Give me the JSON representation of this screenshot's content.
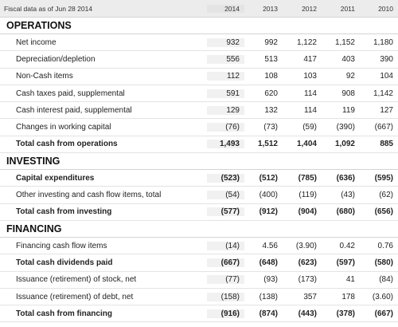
{
  "header": {
    "label": "Fiscal data as of Jun 28 2014",
    "years": [
      "2014",
      "2013",
      "2012",
      "2011",
      "2010"
    ]
  },
  "sections": [
    {
      "title": "OPERATIONS",
      "rows": [
        {
          "label": "Net income",
          "values": [
            "932",
            "992",
            "1,122",
            "1,152",
            "1,180"
          ],
          "total": false
        },
        {
          "label": "Depreciation/depletion",
          "values": [
            "556",
            "513",
            "417",
            "403",
            "390"
          ],
          "total": false
        },
        {
          "label": "Non-Cash items",
          "values": [
            "112",
            "108",
            "103",
            "92",
            "104"
          ],
          "total": false
        },
        {
          "label": "Cash taxes paid, supplemental",
          "values": [
            "591",
            "620",
            "114",
            "908",
            "1,142"
          ],
          "total": false
        },
        {
          "label": "Cash interest paid, supplemental",
          "values": [
            "129",
            "132",
            "114",
            "119",
            "127"
          ],
          "total": false
        },
        {
          "label": "Changes in working capital",
          "values": [
            "(76)",
            "(73)",
            "(59)",
            "(390)",
            "(667)"
          ],
          "total": false
        },
        {
          "label": "Total cash from operations",
          "values": [
            "1,493",
            "1,512",
            "1,404",
            "1,092",
            "885"
          ],
          "total": true
        }
      ]
    },
    {
      "title": "INVESTING",
      "rows": [
        {
          "label": "Capital expenditures",
          "values": [
            "(523)",
            "(512)",
            "(785)",
            "(636)",
            "(595)"
          ],
          "total": true
        },
        {
          "label": "Other investing and cash flow items, total",
          "values": [
            "(54)",
            "(400)",
            "(119)",
            "(43)",
            "(62)"
          ],
          "total": false
        },
        {
          "label": "Total cash from investing",
          "values": [
            "(577)",
            "(912)",
            "(904)",
            "(680)",
            "(656)"
          ],
          "total": true
        }
      ]
    },
    {
      "title": "FINANCING",
      "rows": [
        {
          "label": "Financing cash flow items",
          "values": [
            "(14)",
            "4.56",
            "(3.90)",
            "0.42",
            "0.76"
          ],
          "total": false
        },
        {
          "label": "Total cash dividends paid",
          "values": [
            "(667)",
            "(648)",
            "(623)",
            "(597)",
            "(580)"
          ],
          "total": true
        },
        {
          "label": "Issuance (retirement) of stock, net",
          "values": [
            "(77)",
            "(93)",
            "(173)",
            "41",
            "(84)"
          ],
          "total": false
        },
        {
          "label": "Issuance (retirement) of debt, net",
          "values": [
            "(158)",
            "(138)",
            "357",
            "178",
            "(3.60)"
          ],
          "total": false
        },
        {
          "label": "Total cash from financing",
          "values": [
            "(916)",
            "(874)",
            "(443)",
            "(378)",
            "(667)"
          ],
          "total": true
        }
      ]
    }
  ]
}
